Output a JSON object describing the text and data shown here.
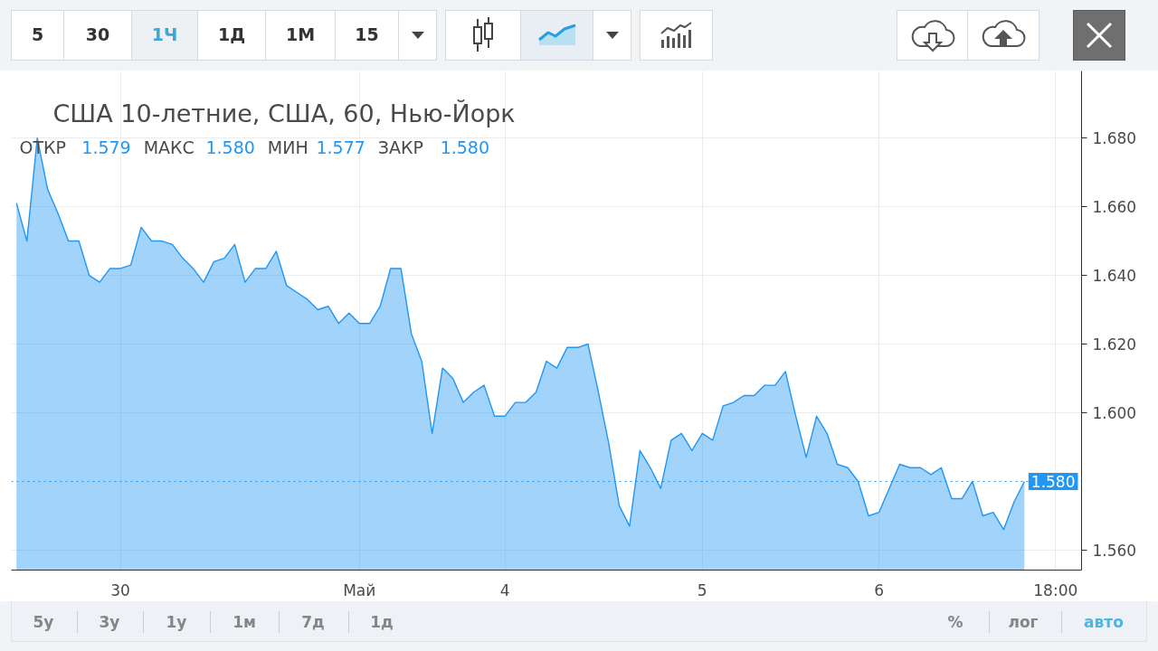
{
  "chart_data": {
    "type": "area",
    "title": "США 10-летние, США, 60, Нью-Йорк",
    "subtitle": "ОТКР 1.579  МАКС 1.580  МИН 1.577  ЗАКР 1.580",
    "categories": [
      null,
      null,
      null,
      null,
      null,
      null,
      null,
      null,
      null,
      null,
      "30",
      null,
      null,
      null,
      null,
      null,
      null,
      null,
      null,
      null,
      null,
      null,
      null,
      null,
      null,
      null,
      null,
      null,
      null,
      null,
      null,
      null,
      null,
      "Май",
      null,
      null,
      null,
      null,
      null,
      null,
      null,
      null,
      null,
      null,
      null,
      null,
      null,
      "4",
      null,
      null,
      null,
      null,
      null,
      null,
      null,
      null,
      null,
      null,
      null,
      null,
      null,
      null,
      null,
      null,
      null,
      null,
      "5",
      null,
      null,
      null,
      null,
      null,
      null,
      null,
      null,
      null,
      null,
      null,
      null,
      null,
      null,
      null,
      null,
      "6",
      null,
      null,
      null,
      null,
      null,
      null,
      null,
      null,
      null,
      null,
      null,
      null,
      null,
      null,
      null,
      null,
      "18:00",
      null,
      null
    ],
    "series": [
      {
        "color": "#2196f3",
        "values": [
          1.661,
          1.65,
          1.68,
          1.665,
          1.658,
          1.65,
          1.65,
          1.64,
          1.638,
          1.642,
          1.642,
          1.643,
          1.654,
          1.65,
          1.65,
          1.649,
          1.645,
          1.642,
          1.638,
          1.644,
          1.645,
          1.649,
          1.638,
          1.642,
          1.642,
          1.647,
          1.637,
          1.635,
          1.633,
          1.63,
          1.631,
          1.626,
          1.629,
          1.626,
          1.626,
          1.631,
          1.642,
          1.642,
          1.623,
          1.615,
          1.594,
          1.613,
          1.61,
          1.603,
          1.606,
          1.608,
          1.599,
          1.599,
          1.603,
          1.603,
          1.606,
          1.615,
          1.613,
          1.619,
          1.619,
          1.62,
          1.606,
          1.591,
          1.573,
          1.567,
          1.589,
          1.584,
          1.578,
          1.592,
          1.594,
          1.589,
          1.594,
          1.592,
          1.602,
          1.603,
          1.605,
          1.605,
          1.608,
          1.608,
          1.612,
          1.599,
          1.587,
          1.599,
          1.594,
          1.585,
          1.584,
          1.58,
          1.57,
          1.571,
          1.578,
          1.585,
          1.584,
          1.584,
          1.582,
          1.584,
          1.575,
          1.575,
          1.58,
          1.57,
          1.571,
          1.566,
          1.574,
          1.58,
          null,
          null,
          null,
          null,
          null
        ]
      }
    ],
    "ylim": [
      1.5542,
      1.6995
    ],
    "yticks": [
      {
        "value": 1.56,
        "label": "1.560"
      },
      {
        "value": 1.6,
        "label": "1.600"
      },
      {
        "value": 1.62,
        "label": "1.620"
      },
      {
        "value": 1.64,
        "label": "1.640"
      },
      {
        "value": 1.66,
        "label": "1.660"
      },
      {
        "value": 1.68,
        "label": "1.680"
      }
    ],
    "grid": true,
    "ref_lines": [
      {
        "axis": "y",
        "value": 1.58,
        "label": "1.580",
        "color": "#2196f3",
        "line_style": "dotted"
      }
    ],
    "annotations": [
      "5",
      "30",
      "1Ч",
      "1Д",
      "1М",
      "15",
      "5у",
      "3у",
      "1у",
      "1м",
      "7д",
      "1д",
      "%",
      "лог",
      "авто"
    ]
  }
}
